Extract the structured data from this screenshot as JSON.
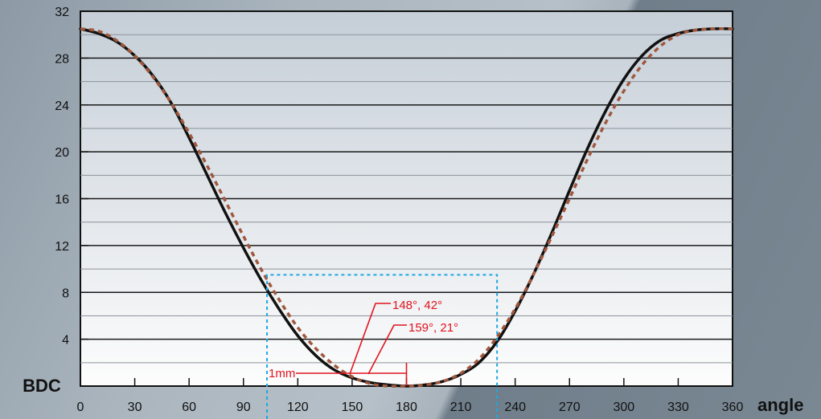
{
  "chart_data": {
    "type": "line",
    "xlabel": "angle",
    "ylabel": "BDC",
    "xlim": [
      0,
      360
    ],
    "ylim": [
      0,
      32
    ],
    "x_ticks": [
      0,
      30,
      60,
      90,
      120,
      150,
      180,
      210,
      240,
      270,
      300,
      330,
      360
    ],
    "y_ticks": [
      4,
      8,
      12,
      16,
      20,
      24,
      28,
      32
    ],
    "grid": true,
    "series": [
      {
        "style": "solid",
        "color": "#111111",
        "x": [
          0,
          10,
          20,
          30,
          40,
          50,
          60,
          70,
          80,
          90,
          100,
          110,
          120,
          130,
          140,
          150,
          160,
          170,
          180,
          190,
          200,
          210,
          220,
          230,
          240,
          250,
          260,
          270,
          280,
          290,
          300,
          310,
          320,
          330,
          340,
          350,
          360
        ],
        "y": [
          30.5,
          30.1,
          29.4,
          28.2,
          26.5,
          24.2,
          21.2,
          18.0,
          14.8,
          11.8,
          9.0,
          6.5,
          4.3,
          2.6,
          1.4,
          0.7,
          0.3,
          0.1,
          0.0,
          0.1,
          0.4,
          1.0,
          2.0,
          3.8,
          6.4,
          9.5,
          13.0,
          16.7,
          20.3,
          23.5,
          26.2,
          28.2,
          29.5,
          30.1,
          30.4,
          30.5,
          30.5
        ]
      },
      {
        "style": "dashed",
        "color": "#a0583e",
        "x": [
          0,
          10,
          20,
          30,
          40,
          50,
          60,
          70,
          80,
          90,
          100,
          110,
          120,
          130,
          140,
          150,
          160,
          170,
          180,
          190,
          200,
          210,
          220,
          230,
          240,
          250,
          260,
          270,
          280,
          290,
          300,
          310,
          320,
          330,
          340,
          350,
          360
        ],
        "y": [
          30.5,
          30.3,
          29.5,
          28.2,
          26.4,
          24.2,
          21.6,
          18.8,
          15.8,
          12.8,
          9.9,
          7.3,
          5.0,
          3.2,
          1.8,
          0.8,
          0.2,
          0.0,
          0.0,
          0.1,
          0.4,
          1.1,
          2.3,
          4.2,
          6.6,
          9.5,
          12.7,
          16.0,
          19.4,
          22.5,
          25.2,
          27.4,
          29.0,
          30.0,
          30.4,
          30.5,
          30.5
        ]
      }
    ],
    "annotations": [
      "148°, 42°",
      "159°, 21°",
      "1mm"
    ],
    "highlight_box": {
      "x": [
        103,
        230
      ],
      "y": [
        -2,
        9.5
      ]
    }
  }
}
